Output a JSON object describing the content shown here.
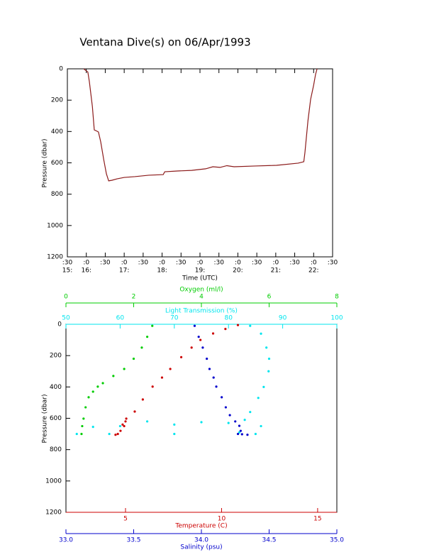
{
  "chart_data": [
    {
      "type": "line",
      "title": "Ventana Dive(s) on 06/Apr/1993",
      "x_label": "Time (UTC)",
      "y_label": "Pressure (dbar)",
      "x": [
        15.93,
        16.04,
        16.08,
        16.16,
        16.21,
        16.25,
        16.32,
        16.38,
        16.46,
        16.53,
        16.59,
        16.68,
        16.81,
        17.0,
        17.28,
        17.65,
        18.03,
        18.07,
        18.4,
        18.78,
        19.15,
        19.34,
        19.53,
        19.71,
        19.9,
        20.46,
        21.02,
        21.59,
        21.74,
        21.77,
        21.85,
        21.92,
        22.0,
        22.05,
        22.09
      ],
      "series": [
        {
          "color": "#8b1a1a",
          "values": [
            0,
            20,
            81,
            240,
            390,
            394,
            403,
            466,
            580,
            670,
            715,
            711,
            702,
            693,
            688,
            679,
            675,
            657,
            652,
            648,
            638,
            625,
            629,
            618,
            625,
            620,
            616,
            602,
            593,
            534,
            331,
            195,
            104,
            36,
            0
          ]
        }
      ],
      "xlim": [
        15.5,
        22.5
      ],
      "xticks": [
        {
          "value": 15.5,
          "label": ":30"
        },
        {
          "value": 16,
          "label": ":0"
        },
        {
          "value": 16.5,
          "label": ":30"
        },
        {
          "value": 17,
          "label": ":0"
        },
        {
          "value": 17.5,
          "label": ":30"
        },
        {
          "value": 18,
          "label": ":0"
        },
        {
          "value": 18.5,
          "label": ":30"
        },
        {
          "value": 19,
          "label": ":0"
        },
        {
          "value": 19.5,
          "label": ":30"
        },
        {
          "value": 20,
          "label": ":0"
        },
        {
          "value": 20.5,
          "label": ":30"
        },
        {
          "value": 21,
          "label": ":0"
        },
        {
          "value": 21.5,
          "label": ":30"
        },
        {
          "value": 22,
          "label": ":0"
        },
        {
          "value": 22.5,
          "label": ":30"
        }
      ],
      "xticks_hour": [
        {
          "value": 15.5,
          "label": "15:"
        },
        {
          "value": 16,
          "label": "16:"
        },
        {
          "value": 17,
          "label": "17:"
        },
        {
          "value": 18,
          "label": "18:"
        },
        {
          "value": 19,
          "label": "19:"
        },
        {
          "value": 20,
          "label": "20:"
        },
        {
          "value": 21,
          "label": "21:"
        },
        {
          "value": 22,
          "label": "22:"
        }
      ],
      "ylim": [
        0,
        1200
      ],
      "y_reversed": true,
      "yticks": [
        0,
        200,
        400,
        600,
        800,
        1000,
        1200
      ]
    },
    {
      "type": "scatter",
      "y_label": "Pressure (dbar)",
      "ylim": [
        0,
        1200
      ],
      "y_reversed": true,
      "yticks": [
        0,
        200,
        400,
        600,
        800,
        1000,
        1200
      ],
      "x_axes": [
        {
          "label": "Oxygen (ml/l)",
          "color": "#00cc00",
          "lim": [
            0,
            8
          ],
          "ticks": [
            0,
            2,
            4,
            6,
            8
          ]
        },
        {
          "label": "Light Transmission (%)",
          "color": "#00e5ee",
          "lim": [
            50,
            100
          ],
          "ticks": [
            50,
            60,
            70,
            80,
            90,
            100
          ]
        },
        {
          "label": "Temperature (C)",
          "color": "#cc0000",
          "lim": [
            1.9,
            16
          ],
          "ticks": [
            5,
            10,
            15
          ]
        },
        {
          "label": "Salinity (psu)",
          "color": "#0000cc",
          "lim": [
            33,
            35
          ],
          "ticks": [
            {
              "value": 33,
              "label": "33.0"
            },
            {
              "value": 33.5,
              "label": "33.5"
            },
            {
              "value": 34,
              "label": "34.0"
            },
            {
              "value": 34.5,
              "label": "34.5"
            },
            {
              "value": 35,
              "label": "35.0"
            }
          ]
        }
      ],
      "series": [
        {
          "x_axis": 0,
          "color": "#00cc00",
          "x": [
            2.55,
            2.4,
            2.24,
            2.0,
            1.72,
            1.4,
            1.09,
            0.94,
            0.8,
            0.67,
            0.58,
            0.52,
            0.48,
            0.46
          ],
          "y": [
            10,
            80,
            149,
            220,
            285,
            330,
            376,
            398,
            430,
            466,
            530,
            602,
            650,
            700
          ]
        },
        {
          "x_axis": 1,
          "color": "#00e5ee",
          "x": [
            84,
            86,
            87,
            87.5,
            87.4,
            86.5,
            85.5,
            84,
            83,
            80,
            70,
            60,
            55,
            65,
            75,
            85,
            70,
            58,
            52,
            86,
            82
          ],
          "y": [
            10,
            60,
            149,
            220,
            300,
            400,
            470,
            560,
            610,
            630,
            640,
            650,
            655,
            620,
            625,
            700,
            700,
            700,
            700,
            650,
            690
          ]
        },
        {
          "x_axis": 2,
          "color": "#cc0000",
          "x": [
            10.85,
            10.2,
            9.56,
            8.9,
            8.44,
            7.9,
            7.33,
            6.9,
            6.41,
            5.9,
            5.48,
            5.04,
            4.93,
            4.74,
            4.6,
            4.48,
            5.0,
            4.85
          ],
          "y": [
            5,
            30,
            59,
            100,
            149,
            210,
            285,
            340,
            398,
            480,
            557,
            602,
            650,
            680,
            700,
            705,
            620,
            640
          ]
        },
        {
          "x_axis": 3,
          "color": "#0000cc",
          "x": [
            33.95,
            33.98,
            34.01,
            34.04,
            34.06,
            34.09,
            34.11,
            34.15,
            34.18,
            34.21,
            34.25,
            34.28,
            34.29,
            34.3,
            34.34,
            34.27
          ],
          "y": [
            10,
            80,
            149,
            220,
            285,
            340,
            398,
            466,
            530,
            580,
            620,
            648,
            680,
            702,
            705,
            700
          ]
        }
      ]
    }
  ]
}
